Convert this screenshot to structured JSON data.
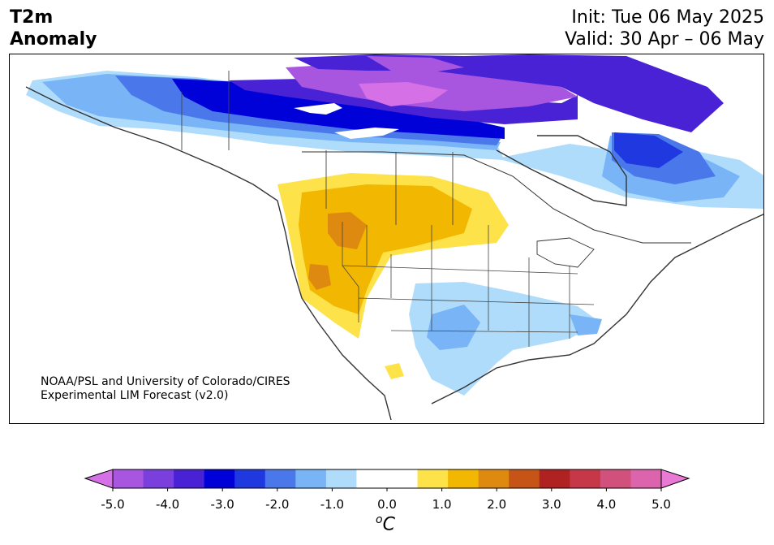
{
  "header": {
    "variable_line1": "T2m",
    "variable_line2": "Anomaly",
    "init_text": "Init: Tue 06 May 2025",
    "valid_text": "Valid: 30 Apr – 06 May"
  },
  "credit": {
    "line1": "NOAA/PSL and University of Colorado/CIRES",
    "line2": "Experimental LIM Forecast (v2.0)"
  },
  "colorbar": {
    "ticks": [
      "-5.0",
      "-4.0",
      "-3.0",
      "-2.0",
      "-1.0",
      "0.0",
      "1.0",
      "2.0",
      "3.0",
      "4.0",
      "5.0"
    ],
    "unit_prefix": "o",
    "unit_suffix": "C",
    "colors": [
      "#d570e6",
      "#a855e0",
      "#7a3fdc",
      "#4a22d6",
      "#0000d8",
      "#2038e0",
      "#4a78ea",
      "#78b4f6",
      "#b0dcfc",
      "#ffffff",
      "#ffffff",
      "#fde24a",
      "#f2b700",
      "#de8a10",
      "#c65416",
      "#b02222",
      "#c63848",
      "#d2507c",
      "#dc64ac",
      "#e87ad6"
    ],
    "extend": "both"
  },
  "map": {
    "region": "North America",
    "fill_palette": {
      "light_blue": "#b0dcfc",
      "blue": "#78b4f6",
      "mid_blue": "#4a78ea",
      "royal_blue": "#2038e0",
      "dark_blue": "#0000d8",
      "indigo": "#4a22d6",
      "violet": "#7a3fdc",
      "purple": "#a855e0",
      "magenta": "#d570e6",
      "yellow": "#fde24a",
      "gold": "#f2b700",
      "orange": "#de8a10"
    }
  }
}
